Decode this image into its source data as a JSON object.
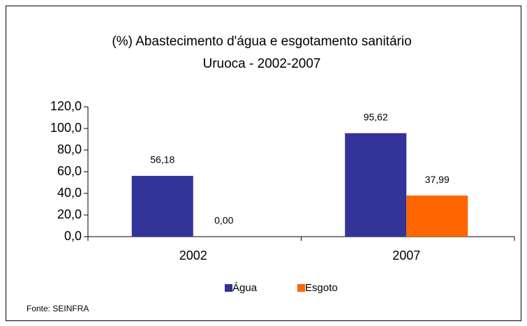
{
  "chart_data": {
    "type": "bar",
    "title": "(%) Abastecimento d'água e esgotamento sanitário",
    "subtitle": "Uruoca - 2002-2007",
    "categories": [
      "2002",
      "2007"
    ],
    "series": [
      {
        "name": "Água",
        "color": "#333399",
        "values": [
          56.18,
          95.62
        ],
        "value_labels": [
          "56,18",
          "95,62"
        ]
      },
      {
        "name": "Esgoto",
        "color": "#ff6600",
        "values": [
          0,
          37.99
        ],
        "value_labels": [
          "0,00",
          "37,99"
        ]
      }
    ],
    "ylim": [
      0,
      120
    ],
    "yticks": [
      {
        "value": 0,
        "label": "0,0"
      },
      {
        "value": 20,
        "label": "20,0"
      },
      {
        "value": 40,
        "label": "40,0"
      },
      {
        "value": 60,
        "label": "60,0"
      },
      {
        "value": 80,
        "label": "80,0"
      },
      {
        "value": 100,
        "label": "100,0"
      },
      {
        "value": 120,
        "label": "120,0"
      }
    ],
    "legend": "bottom",
    "source": "Fonte: SEINFRA"
  }
}
